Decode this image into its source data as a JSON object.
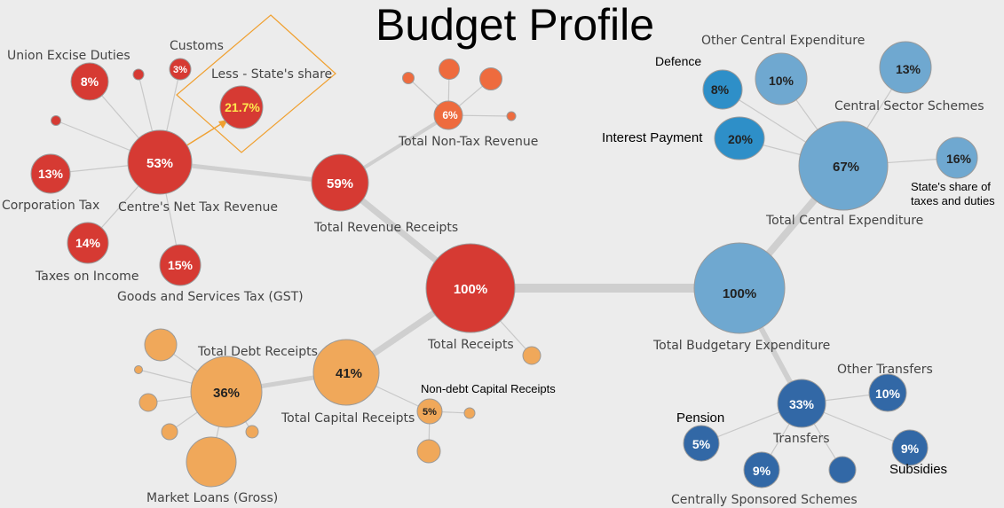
{
  "title": "Budget Profile",
  "colors": {
    "red": "#d63a33",
    "orange": "#ee6b3e",
    "tan": "#f0a85a",
    "light_blue": "#6fa8d0",
    "mid_blue": "#2e8fc8",
    "dark_blue": "#3268a6",
    "highlight_text": "#ffe84d",
    "callout": "#f0a030"
  },
  "nodes": {
    "total_receipts": {
      "value": "100%",
      "label": "Total Receipts"
    },
    "total_revenue_receipts": {
      "value": "59%",
      "label": "Total Revenue Receipts"
    },
    "total_capital_receipts": {
      "value": "41%",
      "label": "Total Capital Receipts"
    },
    "centres_net_tax_revenue": {
      "value": "53%",
      "label": "Centre's Net Tax Revenue"
    },
    "total_non_tax_revenue": {
      "value": "6%",
      "label": "Total Non-Tax Revenue"
    },
    "union_excise_duties": {
      "value": "8%",
      "label": "Union Excise Duties"
    },
    "customs": {
      "value": "3%",
      "label": "Customs"
    },
    "less_states_share": {
      "value": "21.7%",
      "label": "Less - State's share"
    },
    "corporation_tax": {
      "value": "13%",
      "label": "Corporation Tax"
    },
    "taxes_on_income": {
      "value": "14%",
      "label": "Taxes on Income"
    },
    "gst": {
      "value": "15%",
      "label": "Goods and Services Tax (GST)"
    },
    "total_debt_receipts": {
      "value": "36%",
      "label": "Total Debt Receipts"
    },
    "market_loans": {
      "label": "Market Loans (Gross)"
    },
    "non_debt_capital_receipts": {
      "value": "5%",
      "label": "Non-debt Capital Receipts"
    },
    "total_budgetary_expenditure": {
      "value": "100%",
      "label": "Total Budgetary Expenditure"
    },
    "total_central_expenditure": {
      "value": "67%",
      "label": "Total Central Expenditure"
    },
    "transfers": {
      "value": "33%",
      "label": "Transfers"
    },
    "other_central_expenditure": {
      "value": "10%",
      "label": "Other Central Expenditure"
    },
    "central_sector_schemes": {
      "value": "13%",
      "label": "Central Sector Schemes"
    },
    "defence": {
      "value": "8%",
      "label": "Defence"
    },
    "interest_payment": {
      "value": "20%",
      "label": "Interest Payment"
    },
    "states_share_taxes": {
      "value": "16%",
      "label_line1": "State's share of",
      "label_line2": "taxes and duties"
    },
    "other_transfers": {
      "value": "10%",
      "label": "Other Transfers"
    },
    "pension": {
      "value": "5%",
      "label": "Pension"
    },
    "subsidies": {
      "value": "9%",
      "label": "Subsidies"
    },
    "centrally_sponsored_schemes": {
      "value": "9%",
      "label": "Centrally Sponsored Schemes"
    }
  }
}
